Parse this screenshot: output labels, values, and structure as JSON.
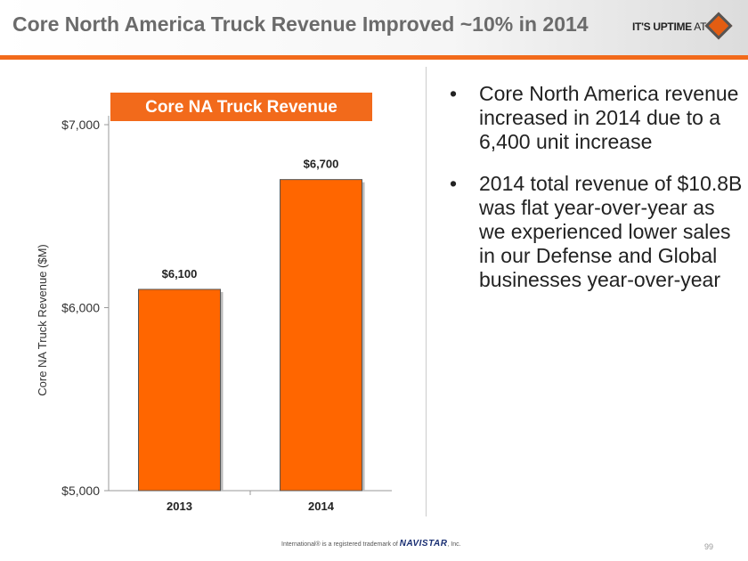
{
  "header": {
    "title": "Core North America Truck Revenue Improved ~10% in 2014",
    "tagline_bold": "IT'S UPTIME",
    "tagline_rest": " AT"
  },
  "chart_data": {
    "type": "bar",
    "title": "Core NA Truck Revenue",
    "categories": [
      "2013",
      "2014"
    ],
    "values": [
      6100,
      6700
    ],
    "data_labels": [
      "$6,100",
      "$6,700"
    ],
    "ylabel": "Core NA Truck Revenue ($M)",
    "xlabel": "",
    "ylim": [
      5000,
      7000
    ],
    "yticks": [
      {
        "v": 5000,
        "label": "$5,000"
      },
      {
        "v": 6000,
        "label": "$6,000"
      },
      {
        "v": 7000,
        "label": "$7,000"
      }
    ],
    "bar_color": "#ff6600",
    "grid": false
  },
  "bullets": [
    "Core North America revenue increased in 2014 due to a 6,400 unit increase",
    "2014 total revenue of $10.8B was flat year-over-year as we experienced lower sales in our Defense and Global businesses year-over-year"
  ],
  "bullet_char": "•",
  "footer": {
    "pre": "International® is a registered trademark of ",
    "brand": "NAVISTAR",
    "post": ", Inc.",
    "page": "99"
  }
}
